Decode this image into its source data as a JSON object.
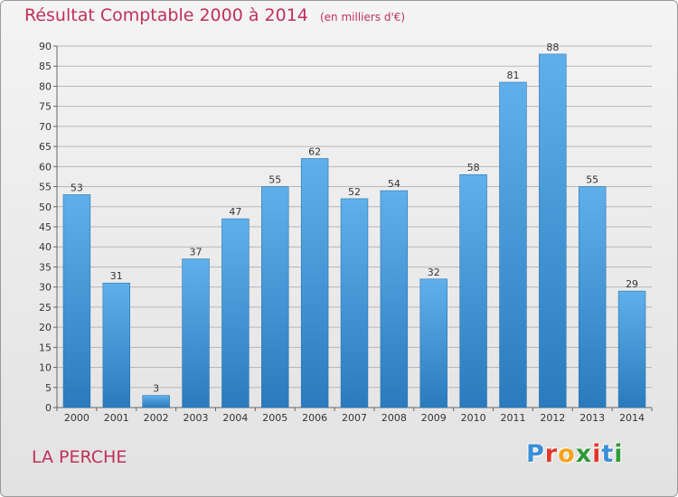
{
  "header": {
    "title": "Résultat Comptable 2000 à 2014",
    "subtitle": "(en milliers d'€)"
  },
  "footer": {
    "place": "LA PERCHE",
    "logo_text": "Proxiti",
    "logo_colors": [
      "#3b8fd6",
      "#e2382c",
      "#f2a51a",
      "#2f9a3a",
      "#e2382c",
      "#3b8fd6",
      "#2f9a3a"
    ]
  },
  "colors": {
    "title": "#c0305a",
    "bar_top": "#5fb0ea",
    "bar_bottom": "#2a7bbd",
    "grid": "#b7b7b7",
    "axis_text": "#333333"
  },
  "chart_data": {
    "type": "bar",
    "title": "Résultat Comptable 2000 à 2014",
    "subtitle": "(en milliers d'€)",
    "categories": [
      "2000",
      "2001",
      "2002",
      "2003",
      "2004",
      "2005",
      "2006",
      "2007",
      "2008",
      "2009",
      "2010",
      "2011",
      "2012",
      "2013",
      "2014"
    ],
    "values": [
      53,
      31,
      3,
      37,
      47,
      55,
      62,
      52,
      54,
      32,
      58,
      81,
      88,
      55,
      29
    ],
    "ylim": [
      0,
      90
    ],
    "ytick_step": 5,
    "grid": true,
    "data_labels": true,
    "legend": "none"
  }
}
